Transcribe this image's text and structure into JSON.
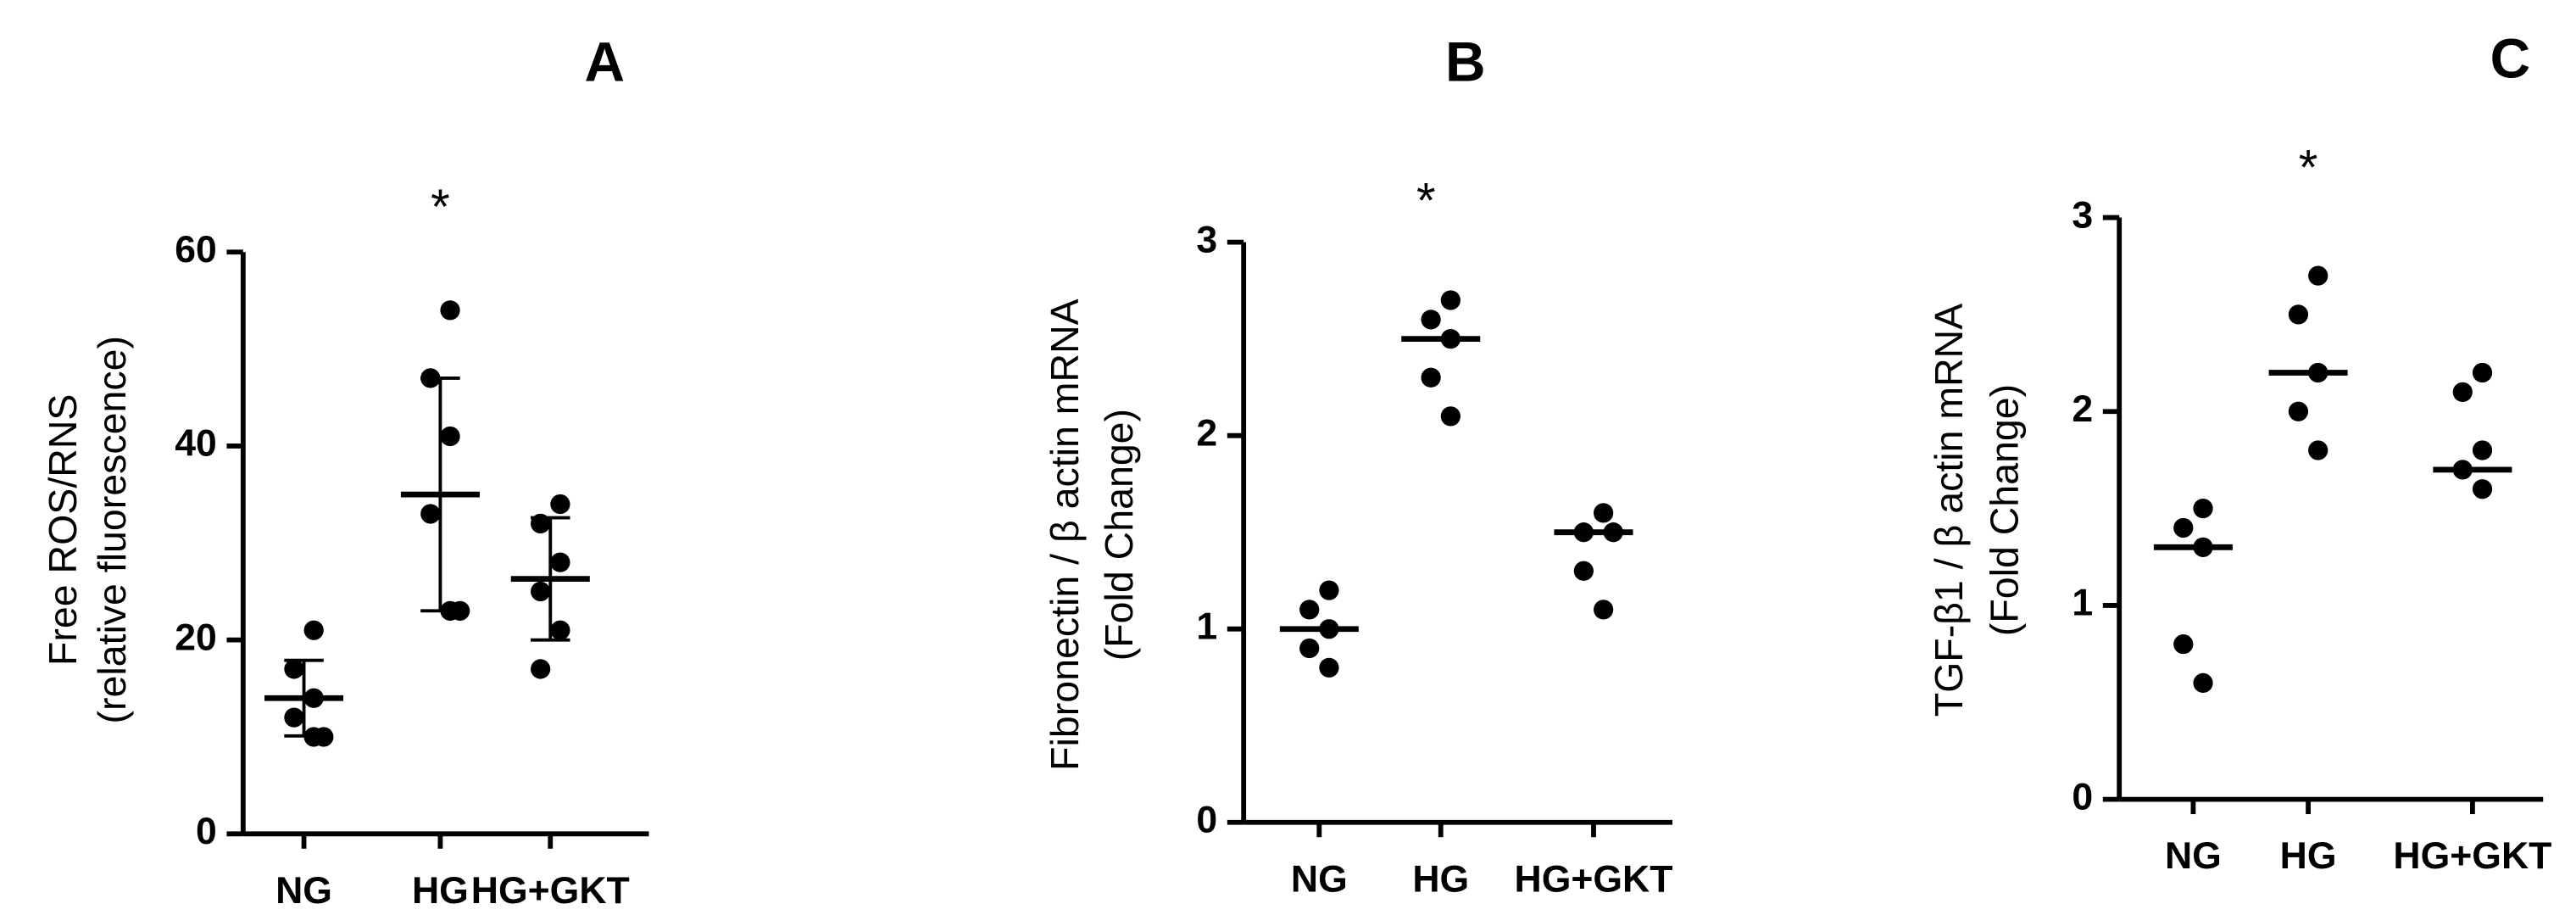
{
  "chart_data": [
    {
      "type": "dot",
      "title": "A",
      "ylabel": [
        "Free ROS/RNS",
        "(relative fluorescence)"
      ],
      "categories": [
        "NG",
        "HG",
        "HG+GKT"
      ],
      "points": [
        [
          21,
          17,
          14,
          12,
          10,
          10
        ],
        [
          54,
          47,
          41,
          33,
          23,
          23
        ],
        [
          34,
          32,
          28,
          25,
          21,
          17
        ]
      ],
      "center": [
        14,
        35,
        26.3
      ],
      "error": [
        3.9,
        12,
        6.3
      ],
      "ylim": [
        0,
        60
      ],
      "yticks": [
        0,
        20,
        40,
        60
      ],
      "color": "#000000",
      "annotation": "*",
      "annotation_category": "HG"
    },
    {
      "type": "dot",
      "title": "B",
      "ylabel": [
        "Fibronectin / β actin mRNA",
        "(Fold Change)"
      ],
      "categories": [
        "NG",
        "HG",
        "HG+GKT"
      ],
      "points": [
        [
          1.2,
          1.1,
          1.0,
          0.9,
          0.8
        ],
        [
          2.7,
          2.6,
          2.5,
          2.3,
          2.1
        ],
        [
          1.6,
          1.5,
          1.5,
          1.3,
          1.1
        ]
      ],
      "center": [
        1.0,
        2.5,
        1.5
      ],
      "ylim": [
        0,
        3
      ],
      "yticks": [
        0,
        1,
        2,
        3
      ],
      "color": "#000000",
      "annotation": "*",
      "annotation_category": "HG"
    },
    {
      "type": "dot",
      "title": "C",
      "ylabel": [
        "TGF-β1 / β actin mRNA",
        "(Fold Change)"
      ],
      "categories": [
        "NG",
        "HG",
        "HG+GKT"
      ],
      "points": [
        [
          1.5,
          1.4,
          1.3,
          0.8,
          0.6
        ],
        [
          2.7,
          2.5,
          2.2,
          2.0,
          1.8
        ],
        [
          2.2,
          2.1,
          1.8,
          1.7,
          1.6
        ]
      ],
      "center": [
        1.3,
        2.2,
        1.7
      ],
      "ylim": [
        0,
        3
      ],
      "yticks": [
        0,
        1,
        2,
        3
      ],
      "color": "#000000",
      "annotation": "*",
      "annotation_category": "HG"
    }
  ]
}
